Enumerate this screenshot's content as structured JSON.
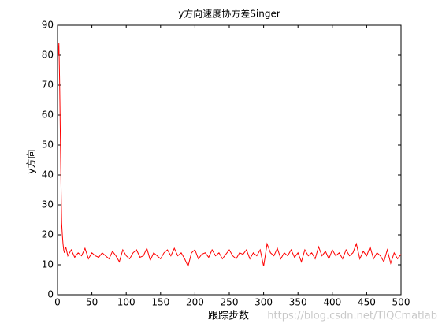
{
  "chart_data": {
    "type": "line",
    "title": "y方向速度协方差Singer",
    "xlabel": "跟踪步数",
    "ylabel": "y方向",
    "watermark": "https://blog.csdn.net/TIQCmatlab",
    "color": "#ff0000",
    "x": [
      1,
      2,
      3,
      4,
      5,
      6,
      7,
      8,
      9,
      10,
      12,
      15,
      20,
      25,
      30,
      35,
      40,
      45,
      50,
      55,
      60,
      65,
      70,
      75,
      80,
      85,
      90,
      95,
      100,
      105,
      110,
      115,
      120,
      125,
      130,
      135,
      140,
      145,
      150,
      155,
      160,
      165,
      170,
      175,
      180,
      185,
      190,
      195,
      200,
      205,
      210,
      215,
      220,
      225,
      230,
      235,
      240,
      245,
      250,
      255,
      260,
      265,
      270,
      275,
      280,
      285,
      290,
      295,
      300,
      305,
      310,
      315,
      320,
      325,
      330,
      335,
      340,
      345,
      350,
      355,
      360,
      365,
      370,
      375,
      380,
      385,
      390,
      395,
      400,
      405,
      410,
      415,
      420,
      425,
      430,
      435,
      440,
      445,
      450,
      455,
      460,
      465,
      470,
      475,
      480,
      485,
      490,
      495,
      500
    ],
    "values": [
      80,
      84,
      72,
      55,
      38,
      24,
      20,
      17,
      15,
      14,
      16,
      13,
      15,
      12.5,
      14,
      13,
      15.5,
      12,
      14,
      13,
      12.5,
      14,
      13,
      12,
      14.5,
      13,
      11,
      15,
      13,
      12,
      14,
      15,
      12.5,
      13,
      15.5,
      11.5,
      14,
      13,
      12,
      14,
      15,
      13,
      15.5,
      13,
      14,
      12,
      9.5,
      14,
      15,
      12,
      13.5,
      14,
      12.5,
      15,
      13,
      14,
      12,
      13.5,
      15,
      13,
      12,
      14,
      13.5,
      15,
      12,
      14,
      13,
      15,
      9.5,
      17,
      14,
      13,
      15.5,
      12,
      14,
      13,
      15,
      12.5,
      14,
      11,
      15,
      13,
      14,
      12,
      16,
      13,
      14.5,
      12,
      15,
      13,
      14,
      12,
      15,
      13,
      14,
      17,
      12,
      14.5,
      13,
      16,
      12,
      14,
      13,
      11,
      15,
      10.5,
      14,
      12,
      13.5
    ],
    "xlim": [
      0,
      500
    ],
    "xticks": [
      0,
      50,
      100,
      150,
      200,
      250,
      300,
      350,
      400,
      450,
      500
    ],
    "ylim": [
      0,
      90
    ],
    "yticks": [
      0,
      10,
      20,
      30,
      40,
      50,
      60,
      70,
      80,
      90
    ]
  }
}
